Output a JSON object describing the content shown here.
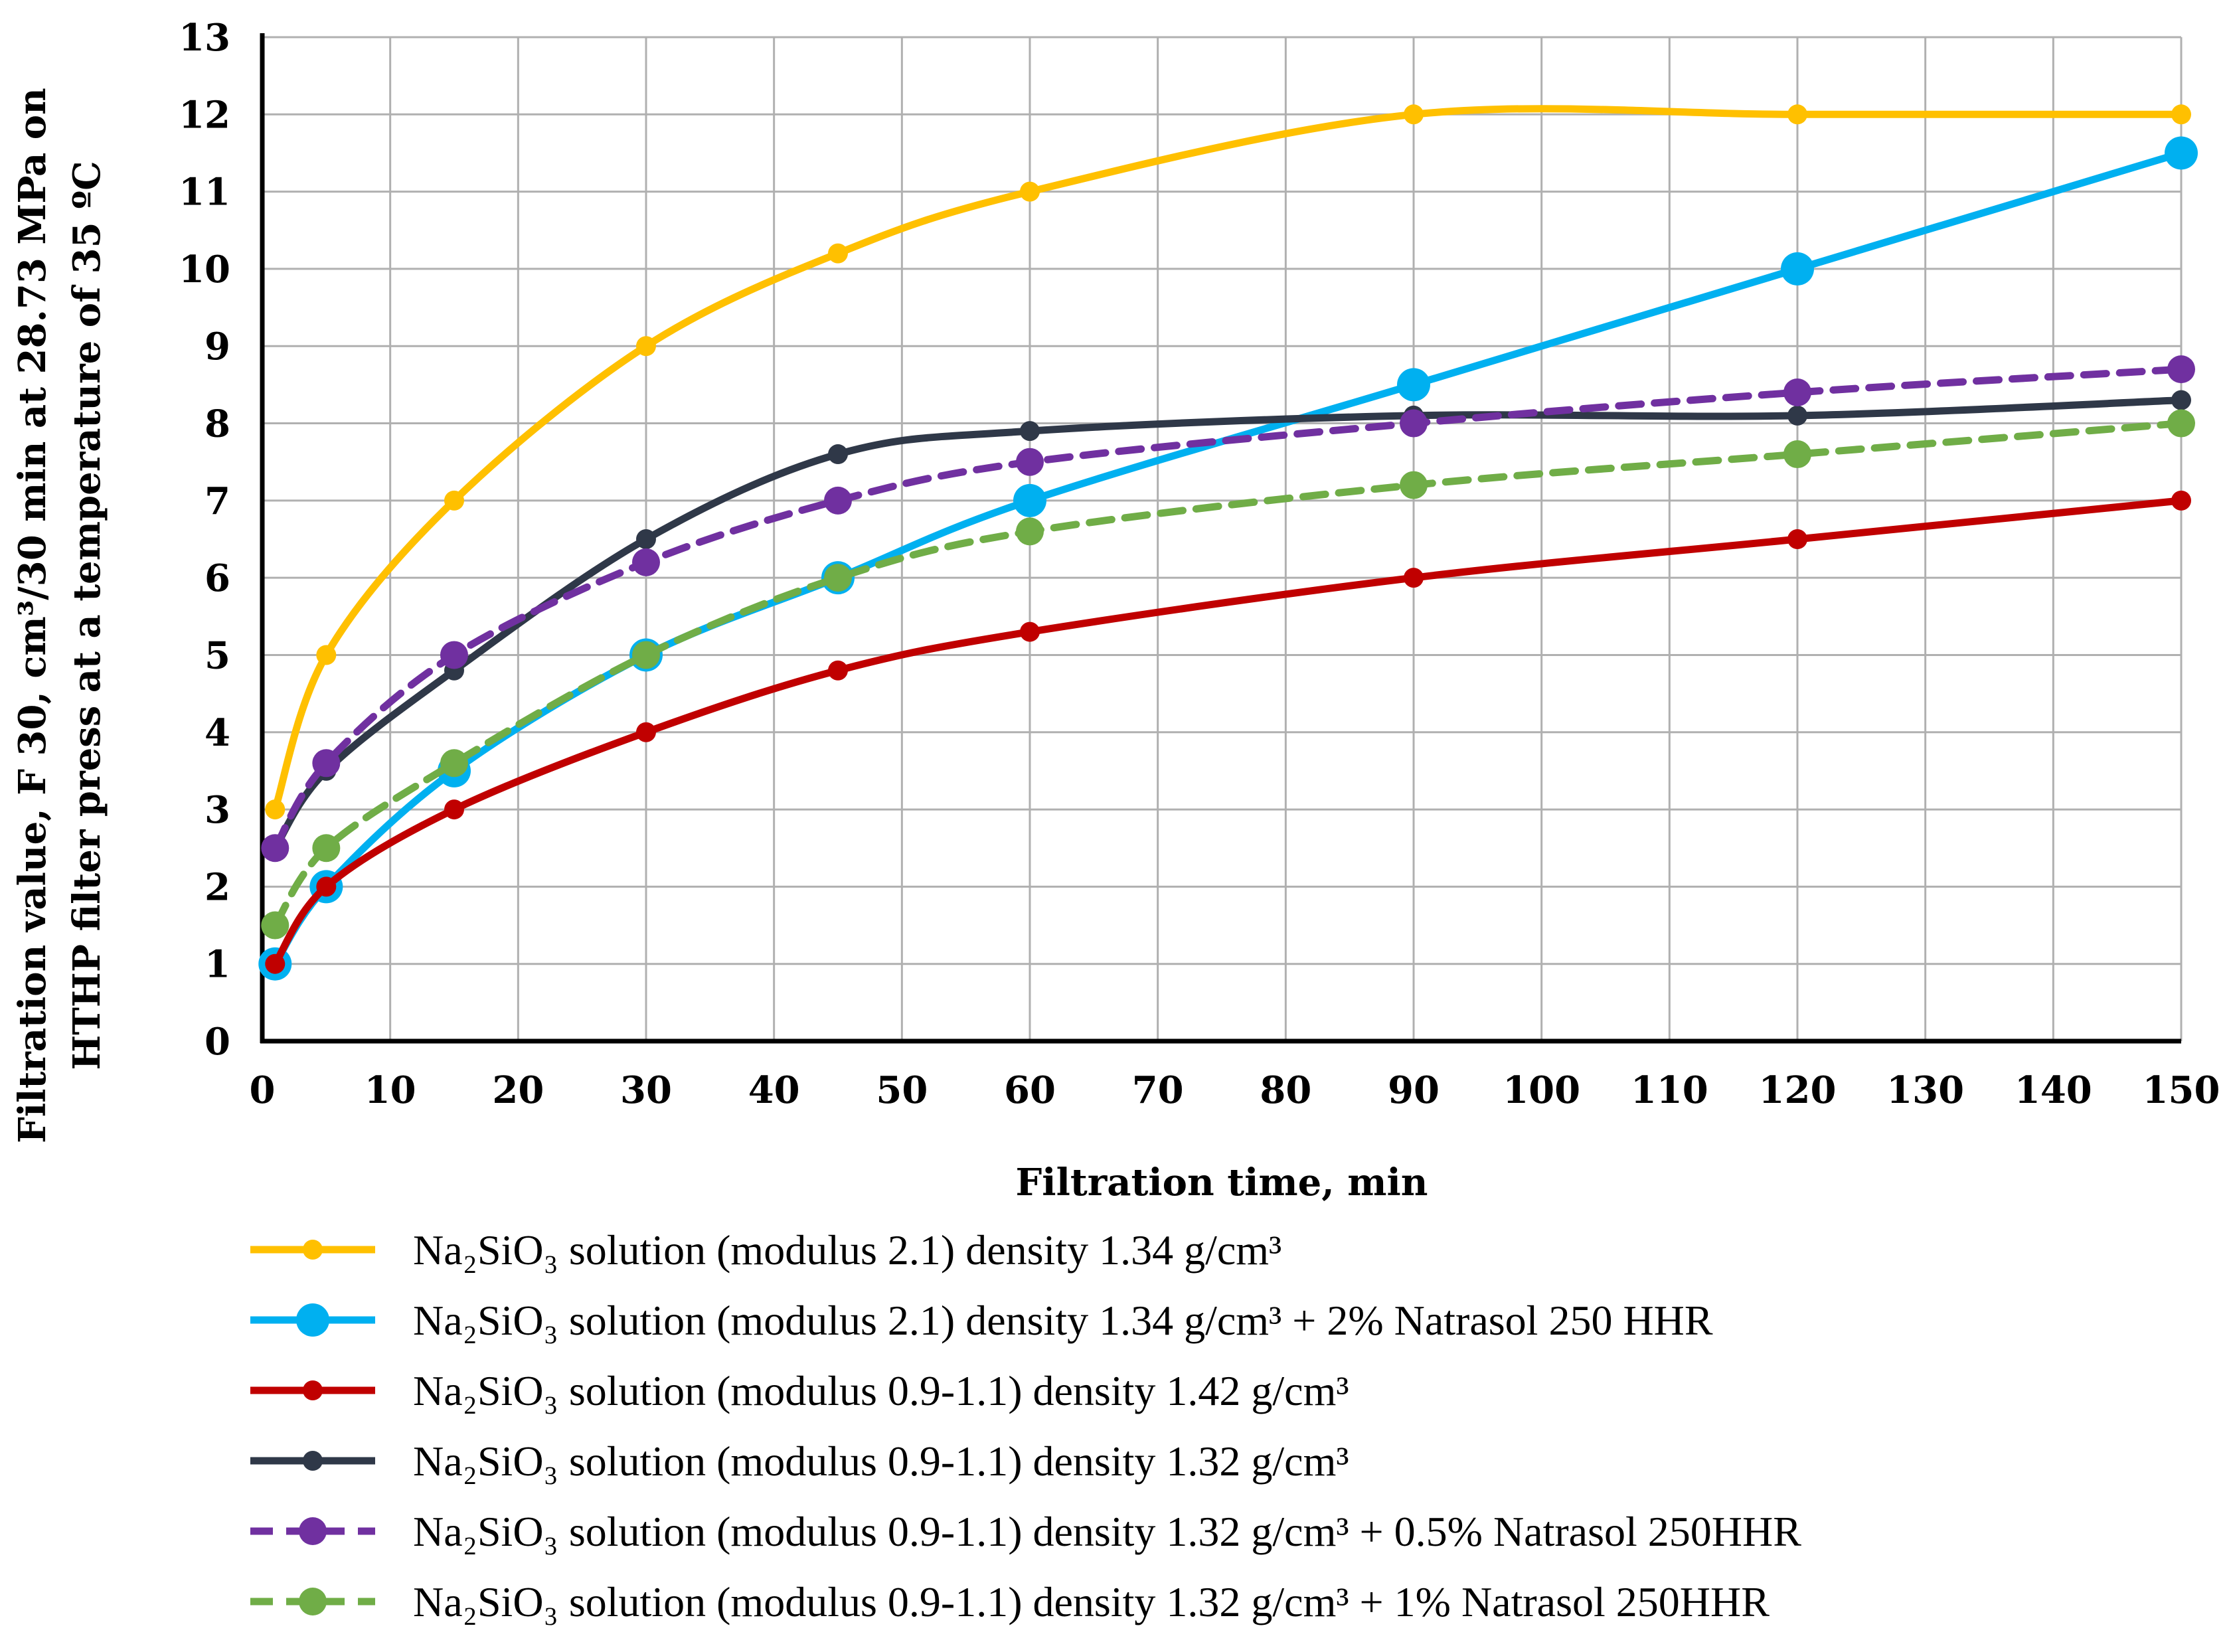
{
  "chart_data": {
    "type": "line",
    "title": "",
    "xlabel": "Filtration time,  min",
    "ylabel_lines": [
      "Filtration value, F 30, cm³/30 min at 28.73 MPa on",
      "HTHP filter press at a temperature of 35 ºC"
    ],
    "xlim": [
      0,
      150
    ],
    "ylim": [
      0,
      13
    ],
    "xticks": [
      "0",
      "10",
      "20",
      "30",
      "40",
      "50",
      "60",
      "70",
      "80",
      "90",
      "100",
      "110",
      "120",
      "130",
      "140",
      "150"
    ],
    "yticks": [
      "0",
      "1",
      "2",
      "3",
      "4",
      "5",
      "6",
      "7",
      "8",
      "9",
      "10",
      "11",
      "12",
      "13"
    ],
    "grid": true,
    "legend_position": "bottom",
    "series": [
      {
        "name": "Na₂SiO₃ solution (modulus 2.1) density 1.34 g/cm³",
        "color": "#FFC000",
        "dash": "solid",
        "marker": "small",
        "x": [
          1,
          5,
          15,
          30,
          45,
          60,
          90,
          120,
          150
        ],
        "y": [
          3,
          5,
          7,
          9,
          10.2,
          11,
          12,
          12,
          12
        ]
      },
      {
        "name": "Na₂SiO₃ solution (modulus 2.1) density 1.34 g/cm³ + 2% Natrasol 250 HHR",
        "color": "#00B0F0",
        "dash": "solid",
        "marker": "large",
        "x": [
          1,
          5,
          15,
          30,
          45,
          60,
          90,
          120,
          150
        ],
        "y": [
          1,
          2,
          3.5,
          5,
          6,
          7,
          8.5,
          10,
          11.5
        ]
      },
      {
        "name": "Na₂SiO₃ solution (modulus 0.9-1.1) density 1.42 g/cm³",
        "color": "#C00000",
        "dash": "solid",
        "marker": "small",
        "x": [
          1,
          5,
          15,
          30,
          45,
          60,
          90,
          120,
          150
        ],
        "y": [
          1,
          2,
          3,
          4,
          4.8,
          5.3,
          6,
          6.5,
          7
        ]
      },
      {
        "name": "Na₂SiO₃ solution (modulus 0.9-1.1) density 1.32 g/cm³",
        "color": "#2F3848",
        "dash": "solid",
        "marker": "small",
        "x": [
          1,
          5,
          15,
          30,
          45,
          60,
          90,
          120,
          150
        ],
        "y": [
          2.5,
          3.5,
          4.8,
          6.5,
          7.6,
          7.9,
          8.1,
          8.1,
          8.3
        ]
      },
      {
        "name": "Na₂SiO₃ solution (modulus 0.9-1.1) density 1.32 g/cm³ + 0.5% Natrasol 250HHR",
        "color": "#7030A0",
        "dash": "dashed",
        "marker": "medium",
        "x": [
          1,
          5,
          15,
          30,
          45,
          60,
          90,
          120,
          150
        ],
        "y": [
          2.5,
          3.6,
          5,
          6.2,
          7,
          7.5,
          8,
          8.4,
          8.7
        ]
      },
      {
        "name": "Na₂SiO₃ solution (modulus 0.9-1.1) density 1.32 g/cm³ + 1% Natrasol 250HHR",
        "color": "#70AD47",
        "dash": "dashed",
        "marker": "medium",
        "x": [
          1,
          5,
          15,
          30,
          45,
          60,
          90,
          120,
          150
        ],
        "y": [
          1.5,
          2.5,
          3.6,
          5,
          6,
          6.6,
          7.2,
          7.6,
          8
        ]
      }
    ]
  }
}
